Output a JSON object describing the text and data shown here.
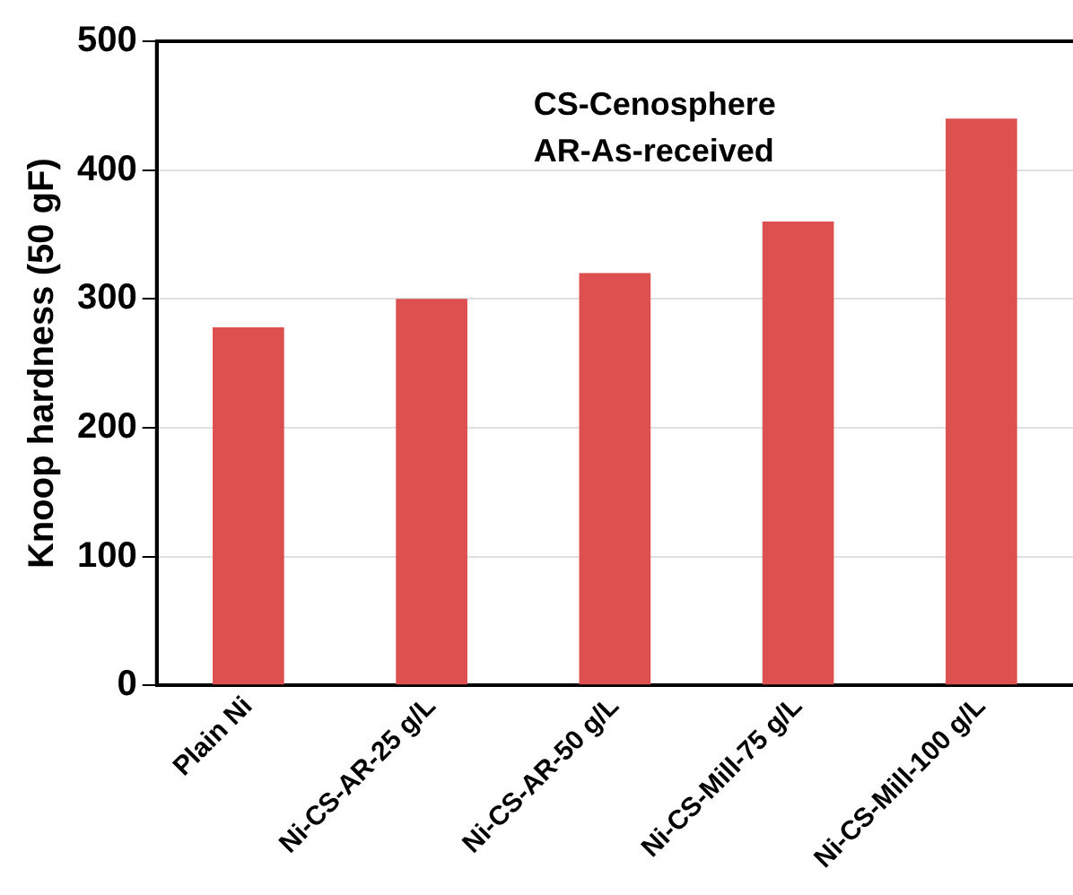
{
  "chart_data": {
    "type": "bar",
    "ylabel": "Knoop hardness (50 gF)",
    "categories": [
      "Plain Ni",
      "Ni-CS-AR-25 g/L",
      "Ni-CS-AR-50 g/L",
      "Ni-CS-Mill-75 g/L",
      "Ni-CS-Mill-100 g/L"
    ],
    "values": [
      278,
      300,
      320,
      360,
      440
    ],
    "color": "#dc5050",
    "ylim": [
      0,
      500
    ],
    "yticks": [
      0,
      100,
      200,
      300,
      400,
      500
    ],
    "grid": "y",
    "annotations": [
      "CS-Cenosphere",
      "AR-As-received"
    ]
  }
}
